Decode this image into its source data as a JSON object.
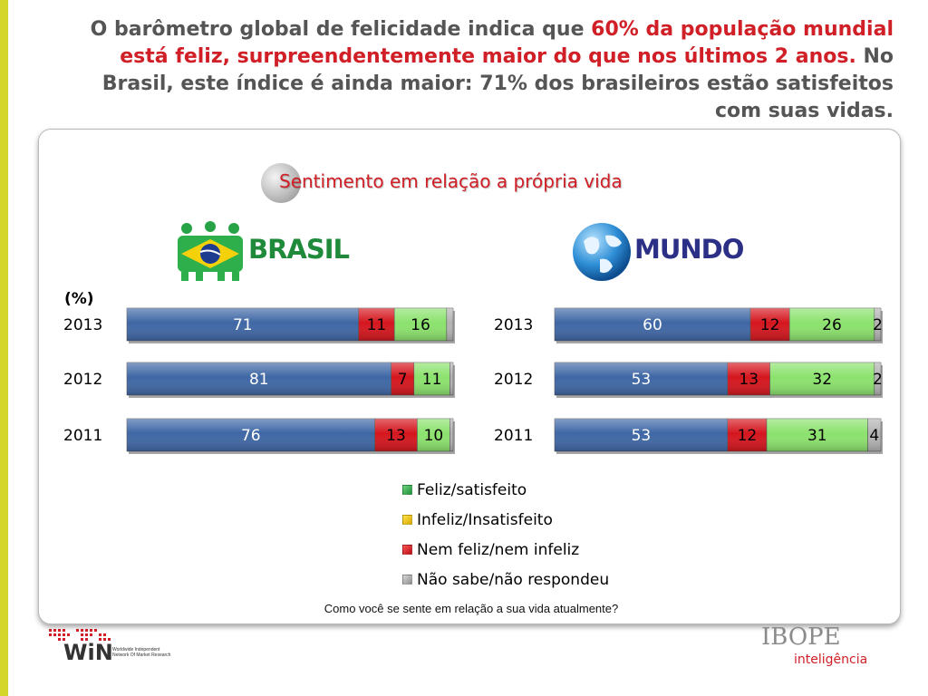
{
  "headline": {
    "part1": "O barômetro global de felicidade indica que ",
    "highlight": "60% da população mundial está feliz, surpreendentemente  maior do que nos últimos 2 anos.",
    "part2": " No Brasil, este índice é ainda maior: 71% dos brasileiros estão satisfeitos com suas vidas."
  },
  "colors": {
    "accent_red": "#d01f26",
    "side_strip": "#d4d62c",
    "series": [
      "#3f67a5",
      "#d5161e",
      "#8ce26d",
      "#b3b3b3"
    ]
  },
  "logos": {
    "brasil": "BRASIL",
    "mundo": "MUNDO",
    "win_small": "Worldwide Independent Network Of Market Research",
    "win_main": "WiN"
  },
  "footer": {
    "question": "Como você se sente em relação a sua vida atualmente?",
    "ibope_main": "IBOPE",
    "ibope_sub": "inteligência"
  },
  "chart_data": {
    "type": "bar",
    "orientation": "horizontal",
    "stacked": true,
    "title": "Sentimento em relação a própria vida",
    "unit_label": "(%)",
    "legend": [
      {
        "label": "Feliz/satisfeito",
        "color": "#2ea44f"
      },
      {
        "label": "Infeliz/Insatisfeito",
        "color": "#f2c900"
      },
      {
        "label": "Nem feliz/nem infeliz",
        "color": "#d5161e"
      },
      {
        "label": "Não sabe/não respondeu",
        "color": "#a8a8a8"
      }
    ],
    "panels": [
      {
        "name": "BRASIL",
        "categories": [
          "2013",
          "2012",
          "2011"
        ],
        "series": [
          {
            "values": [
              71,
              81,
              76
            ]
          },
          {
            "values": [
              11,
              7,
              13
            ]
          },
          {
            "values": [
              16,
              11,
              10
            ]
          },
          {
            "values": [
              2,
              1,
              1
            ]
          }
        ]
      },
      {
        "name": "MUNDO",
        "categories": [
          "2013",
          "2012",
          "2011"
        ],
        "series": [
          {
            "values": [
              60,
              53,
              53
            ]
          },
          {
            "values": [
              12,
              13,
              12
            ]
          },
          {
            "values": [
              26,
              32,
              31
            ]
          },
          {
            "values": [
              2,
              2,
              4
            ]
          }
        ],
        "label_last": true
      }
    ]
  }
}
